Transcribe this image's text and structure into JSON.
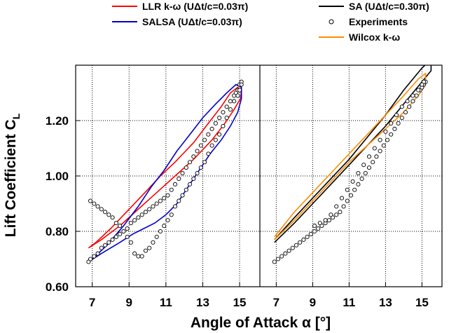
{
  "chart_data": {
    "type": "line",
    "xlabel": "Angle of Attack α [°]",
    "ylabel": "Lift Coefficient C",
    "ylabel_sub": "L",
    "ylim": [
      0.6,
      1.4
    ],
    "yticks": [
      0.6,
      0.8,
      1.0,
      1.2
    ],
    "ytick_labels": [
      "0.60",
      "0.80",
      "1.00",
      "1.20"
    ],
    "grid": true,
    "legend_position": "top",
    "panels": [
      {
        "xlim": [
          6.1,
          16.1
        ],
        "xticks": [
          7,
          9,
          11,
          13,
          15
        ],
        "xtick_labels": [
          "7",
          "9",
          "11",
          "13",
          "15"
        ]
      },
      {
        "xlim": [
          6.1,
          16.1
        ],
        "xticks": [
          7,
          9,
          11,
          13,
          15
        ],
        "xtick_labels": [
          "7",
          "9",
          "11",
          "13",
          "15"
        ]
      }
    ],
    "legend": [
      {
        "label": "LLR k-ω (UΔt/c=0.03π)",
        "color": "#ff0000",
        "marker": "line"
      },
      {
        "label": "SALSA   (UΔt/c=0.03π)",
        "color": "#0000cc",
        "marker": "line"
      },
      {
        "label": "SA  (UΔt/c=0.30π)",
        "color": "#000000",
        "marker": "line"
      },
      {
        "label": "Experiments",
        "color": "#000000",
        "marker": "circle"
      },
      {
        "label": "Wilcox k-ω",
        "color": "#ff8c00",
        "marker": "line"
      }
    ],
    "series": [
      {
        "name": "LLR k-ω (UΔt/c=0.03π)",
        "panel": 0,
        "color": "#ff0000",
        "x": [
          6.8,
          7.5,
          8.5,
          9.5,
          10.5,
          11.5,
          12.5,
          13.5,
          14.2,
          14.7,
          15.05,
          15.1,
          14.9,
          14.5,
          14.0,
          13.3,
          12.5,
          11.5,
          10.7,
          10.0,
          9.0,
          8.0,
          7.2,
          6.8
        ],
        "y": [
          0.74,
          0.77,
          0.82,
          0.88,
          0.94,
          1.0,
          1.06,
          1.13,
          1.19,
          1.24,
          1.28,
          1.31,
          1.32,
          1.3,
          1.25,
          1.19,
          1.12,
          1.05,
          1.0,
          0.95,
          0.88,
          0.81,
          0.76,
          0.74
        ]
      },
      {
        "name": "SALSA   (UΔt/c=0.03π)",
        "panel": 0,
        "color": "#0000cc",
        "x": [
          6.8,
          7.5,
          8.5,
          9.2,
          9.8,
          10.4,
          11.0,
          11.6,
          12.2,
          12.8,
          13.4,
          14.0,
          14.5,
          14.9,
          15.1,
          15.1,
          14.8,
          14.3,
          13.7,
          13.0,
          12.3,
          11.6,
          10.9,
          10.2,
          9.5,
          8.7,
          7.8,
          7.0,
          6.8
        ],
        "y": [
          0.69,
          0.72,
          0.76,
          0.79,
          0.81,
          0.83,
          0.86,
          0.9,
          0.96,
          1.02,
          1.08,
          1.13,
          1.18,
          1.23,
          1.28,
          1.32,
          1.33,
          1.3,
          1.26,
          1.21,
          1.15,
          1.09,
          1.02,
          0.96,
          0.89,
          0.82,
          0.75,
          0.7,
          0.69
        ]
      },
      {
        "name": "SA  (UΔt/c=0.30π)",
        "panel": 1,
        "color": "#000000",
        "x": [
          6.9,
          8.0,
          9.0,
          10.0,
          11.0,
          12.0,
          13.0,
          14.0,
          15.0,
          15.5,
          15.5,
          15.0,
          14.0,
          13.0,
          12.0,
          11.0,
          10.0,
          9.0,
          8.0,
          6.9
        ],
        "y": [
          0.76,
          0.83,
          0.9,
          0.97,
          1.04,
          1.11,
          1.18,
          1.26,
          1.34,
          1.38,
          1.42,
          1.39,
          1.31,
          1.22,
          1.14,
          1.06,
          0.99,
          0.92,
          0.85,
          0.77
        ]
      },
      {
        "name": "Wilcox k-ω",
        "panel": 1,
        "color": "#ff8c00",
        "x": [
          6.9,
          8.0,
          9.0,
          10.0,
          11.0,
          12.0,
          13.0,
          14.0,
          14.8,
          15.2,
          15.2,
          14.8,
          14.0,
          13.0,
          12.0,
          11.0,
          10.0,
          9.0,
          8.0,
          6.9
        ],
        "y": [
          0.77,
          0.84,
          0.91,
          0.98,
          1.05,
          1.11,
          1.17,
          1.23,
          1.29,
          1.33,
          1.37,
          1.35,
          1.29,
          1.22,
          1.15,
          1.08,
          1.01,
          0.94,
          0.87,
          0.78
        ]
      }
    ],
    "experiments": [
      {
        "panel": 0,
        "x": [
          6.8,
          6.9,
          7.1,
          7.3,
          7.5,
          7.7,
          7.9,
          8.1,
          8.3,
          8.5,
          8.7,
          8.9,
          9.1,
          9.3,
          9.5,
          9.7,
          9.9,
          10.1,
          10.3,
          10.5,
          10.7,
          10.9,
          11.1,
          11.3,
          11.5,
          11.7,
          11.9,
          12.1,
          12.3,
          12.5,
          12.7,
          12.9,
          13.1,
          13.3,
          13.5,
          13.7,
          13.9,
          14.1,
          14.3,
          14.5,
          14.7,
          14.8,
          14.9,
          15.0,
          15.1,
          15.1,
          15.0,
          14.9,
          14.7,
          14.5,
          14.3,
          14.1,
          13.9,
          13.7,
          13.5,
          13.3,
          13.1,
          12.9,
          12.7,
          12.5,
          12.3,
          12.1,
          11.9,
          11.7,
          11.5,
          11.3,
          11.1,
          10.9,
          10.7,
          10.5,
          10.3,
          10.1,
          9.9,
          9.7,
          9.5,
          9.3,
          9.1,
          8.9,
          8.7,
          8.5,
          8.3,
          8.1,
          7.9,
          7.7,
          7.5,
          7.3,
          7.1,
          6.9
        ],
        "y": [
          0.69,
          0.7,
          0.71,
          0.72,
          0.74,
          0.75,
          0.76,
          0.77,
          0.78,
          0.79,
          0.8,
          0.81,
          0.83,
          0.84,
          0.85,
          0.86,
          0.87,
          0.88,
          0.89,
          0.9,
          0.91,
          0.92,
          0.93,
          0.95,
          0.97,
          0.99,
          1.01,
          1.03,
          1.05,
          1.07,
          1.09,
          1.11,
          1.13,
          1.15,
          1.17,
          1.19,
          1.21,
          1.23,
          1.25,
          1.27,
          1.29,
          1.3,
          1.31,
          1.33,
          1.34,
          1.33,
          1.31,
          1.29,
          1.27,
          1.24,
          1.21,
          1.18,
          1.15,
          1.13,
          1.11,
          1.08,
          1.05,
          1.03,
          1.01,
          0.99,
          0.97,
          0.95,
          0.93,
          0.91,
          0.89,
          0.86,
          0.84,
          0.82,
          0.8,
          0.78,
          0.76,
          0.74,
          0.73,
          0.71,
          0.71,
          0.72,
          0.76,
          0.78,
          0.8,
          0.82,
          0.83,
          0.85,
          0.86,
          0.87,
          0.88,
          0.89,
          0.9,
          0.91
        ]
      },
      {
        "panel": 1,
        "x": [
          6.9,
          7.1,
          7.3,
          7.5,
          7.7,
          7.9,
          8.1,
          8.3,
          8.5,
          8.7,
          8.9,
          9.1,
          9.3,
          9.5,
          9.7,
          9.9,
          10.1,
          10.3,
          10.5,
          10.7,
          10.9,
          11.1,
          11.3,
          11.5,
          11.7,
          11.9,
          12.1,
          12.3,
          12.5,
          12.7,
          12.9,
          13.1,
          13.3,
          13.5,
          13.7,
          13.9,
          14.1,
          14.3,
          14.5,
          14.7,
          14.9,
          15.0,
          15.1,
          15.2,
          15.1,
          15.0,
          14.8,
          14.5,
          14.2,
          13.9,
          13.6,
          13.3,
          13.0,
          12.7,
          12.4,
          12.1,
          11.8,
          11.5,
          11.2,
          10.9,
          10.6,
          10.3,
          10.0,
          9.7,
          9.4,
          9.1
        ],
        "y": [
          0.69,
          0.7,
          0.71,
          0.72,
          0.73,
          0.74,
          0.75,
          0.76,
          0.77,
          0.78,
          0.79,
          0.8,
          0.81,
          0.82,
          0.83,
          0.84,
          0.85,
          0.86,
          0.87,
          0.89,
          0.91,
          0.93,
          0.95,
          0.97,
          0.99,
          1.01,
          1.03,
          1.05,
          1.07,
          1.09,
          1.11,
          1.13,
          1.15,
          1.17,
          1.19,
          1.21,
          1.23,
          1.25,
          1.27,
          1.29,
          1.31,
          1.32,
          1.33,
          1.34,
          1.34,
          1.33,
          1.31,
          1.29,
          1.27,
          1.25,
          1.22,
          1.19,
          1.16,
          1.13,
          1.1,
          1.07,
          1.04,
          1.01,
          0.98,
          0.95,
          0.92,
          0.89,
          0.86,
          0.84,
          0.83,
          0.82
        ]
      }
    ]
  }
}
